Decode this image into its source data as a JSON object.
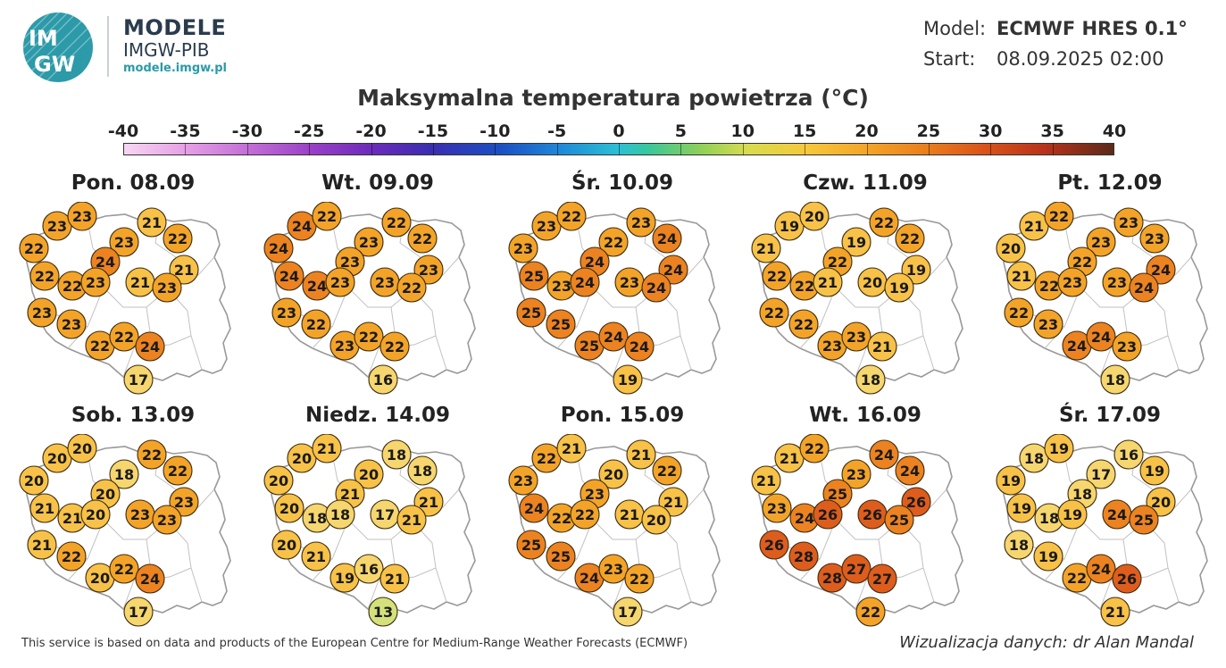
{
  "brand": {
    "title": "MODELE",
    "subtitle": "IMGW-PIB",
    "url": "modele.imgw.pl",
    "logo_text_top": "IM",
    "logo_text_bottom": "GW"
  },
  "model_info": {
    "model_label": "Model:",
    "model_value": "ECMWF HRES 0.1°",
    "start_label": "Start:",
    "start_value": "08.09.2025 02:00"
  },
  "title": "Maksymalna temperatura powietrza (°C)",
  "scale": {
    "labels": [
      "-40",
      "-35",
      "-30",
      "-25",
      "-20",
      "-15",
      "-10",
      "-5",
      "0",
      "5",
      "10",
      "15",
      "20",
      "25",
      "30",
      "35",
      "40"
    ]
  },
  "colors": {
    "cool": "#d4e17a",
    "yellow": "#f6d66e",
    "light_orange": "#f7c247",
    "orange": "#f3a428",
    "dark_orange": "#ec8320",
    "red_orange": "#de5d1d",
    "map_fill": "#ffffff",
    "map_border": "#999999"
  },
  "days": [
    {
      "label": "Pon. 08.09",
      "values": [
        "23",
        "23",
        "21",
        "22",
        "23",
        "22",
        "22",
        "24",
        "22",
        "21",
        "23",
        "23",
        "21",
        "23",
        "23",
        "22",
        "22",
        "24",
        "17"
      ]
    },
    {
      "label": "Wt. 09.09",
      "values": [
        "24",
        "22",
        "22",
        "24",
        "23",
        "22",
        "24",
        "23",
        "24",
        "23",
        "23",
        "23",
        "23",
        "22",
        "22",
        "23",
        "22",
        "22",
        "16"
      ]
    },
    {
      "label": "Śr. 10.09",
      "values": [
        "23",
        "22",
        "23",
        "23",
        "22",
        "24",
        "25",
        "24",
        "23",
        "24",
        "25",
        "24",
        "23",
        "24",
        "25",
        "25",
        "24",
        "24",
        "19"
      ]
    },
    {
      "label": "Czw. 11.09",
      "values": [
        "19",
        "20",
        "22",
        "21",
        "19",
        "22",
        "22",
        "22",
        "22",
        "19",
        "22",
        "21",
        "20",
        "19",
        "22",
        "23",
        "23",
        "21",
        "18"
      ]
    },
    {
      "label": "Pt. 12.09",
      "values": [
        "21",
        "22",
        "23",
        "20",
        "23",
        "23",
        "21",
        "22",
        "22",
        "24",
        "22",
        "23",
        "23",
        "24",
        "23",
        "24",
        "24",
        "23",
        "18"
      ]
    },
    {
      "label": "Sob. 13.09",
      "values": [
        "20",
        "20",
        "22",
        "20",
        "18",
        "22",
        "21",
        "20",
        "21",
        "23",
        "21",
        "20",
        "23",
        "23",
        "22",
        "20",
        "22",
        "24",
        "17"
      ]
    },
    {
      "label": "Niedz. 14.09",
      "values": [
        "20",
        "21",
        "18",
        "20",
        "20",
        "18",
        "20",
        "21",
        "18",
        "21",
        "20",
        "18",
        "17",
        "21",
        "21",
        "19",
        "16",
        "21",
        "13"
      ]
    },
    {
      "label": "Pon. 15.09",
      "values": [
        "22",
        "21",
        "21",
        "23",
        "20",
        "22",
        "24",
        "23",
        "22",
        "21",
        "25",
        "22",
        "21",
        "20",
        "25",
        "24",
        "23",
        "22",
        "17"
      ]
    },
    {
      "label": "Wt. 16.09",
      "values": [
        "21",
        "22",
        "24",
        "21",
        "23",
        "24",
        "23",
        "25",
        "24",
        "26",
        "26",
        "26",
        "26",
        "25",
        "28",
        "28",
        "27",
        "27",
        "22"
      ]
    },
    {
      "label": "Śr. 17.09",
      "values": [
        "18",
        "19",
        "16",
        "19",
        "17",
        "19",
        "19",
        "18",
        "18",
        "20",
        "18",
        "19",
        "24",
        "25",
        "19",
        "22",
        "24",
        "26",
        "21"
      ]
    }
  ],
  "footer": {
    "left": "This service is based on data and products of the European Centre for Medium-Range Weather Forecasts (ECMWF)",
    "right": "Wizualizacja danych: dr Alan Mandal"
  }
}
